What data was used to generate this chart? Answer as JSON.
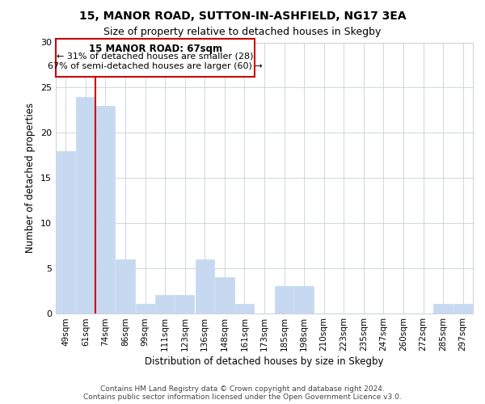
{
  "title": "15, MANOR ROAD, SUTTON-IN-ASHFIELD, NG17 3EA",
  "subtitle": "Size of property relative to detached houses in Skegby",
  "xlabel": "Distribution of detached houses by size in Skegby",
  "ylabel": "Number of detached properties",
  "categories": [
    "49sqm",
    "61sqm",
    "74sqm",
    "86sqm",
    "99sqm",
    "111sqm",
    "123sqm",
    "136sqm",
    "148sqm",
    "161sqm",
    "173sqm",
    "185sqm",
    "198sqm",
    "210sqm",
    "223sqm",
    "235sqm",
    "247sqm",
    "260sqm",
    "272sqm",
    "285sqm",
    "297sqm"
  ],
  "values": [
    18,
    24,
    23,
    6,
    1,
    2,
    2,
    6,
    4,
    1,
    0,
    3,
    3,
    0,
    0,
    0,
    0,
    0,
    0,
    1,
    1
  ],
  "bar_color": "#c6d9f0",
  "highlight_line_color": "#cc0000",
  "annotation_title": "15 MANOR ROAD: 67sqm",
  "annotation_line1": "← 31% of detached houses are smaller (28)",
  "annotation_line2": "67% of semi-detached houses are larger (60) →",
  "annotation_box_color": "#ffffff",
  "annotation_box_edge": "#cc0000",
  "ylim": [
    0,
    30
  ],
  "yticks": [
    0,
    5,
    10,
    15,
    20,
    25,
    30
  ],
  "footer1": "Contains HM Land Registry data © Crown copyright and database right 2024.",
  "footer2": "Contains public sector information licensed under the Open Government Licence v3.0.",
  "background_color": "#ffffff",
  "grid_color": "#c8d0d8"
}
